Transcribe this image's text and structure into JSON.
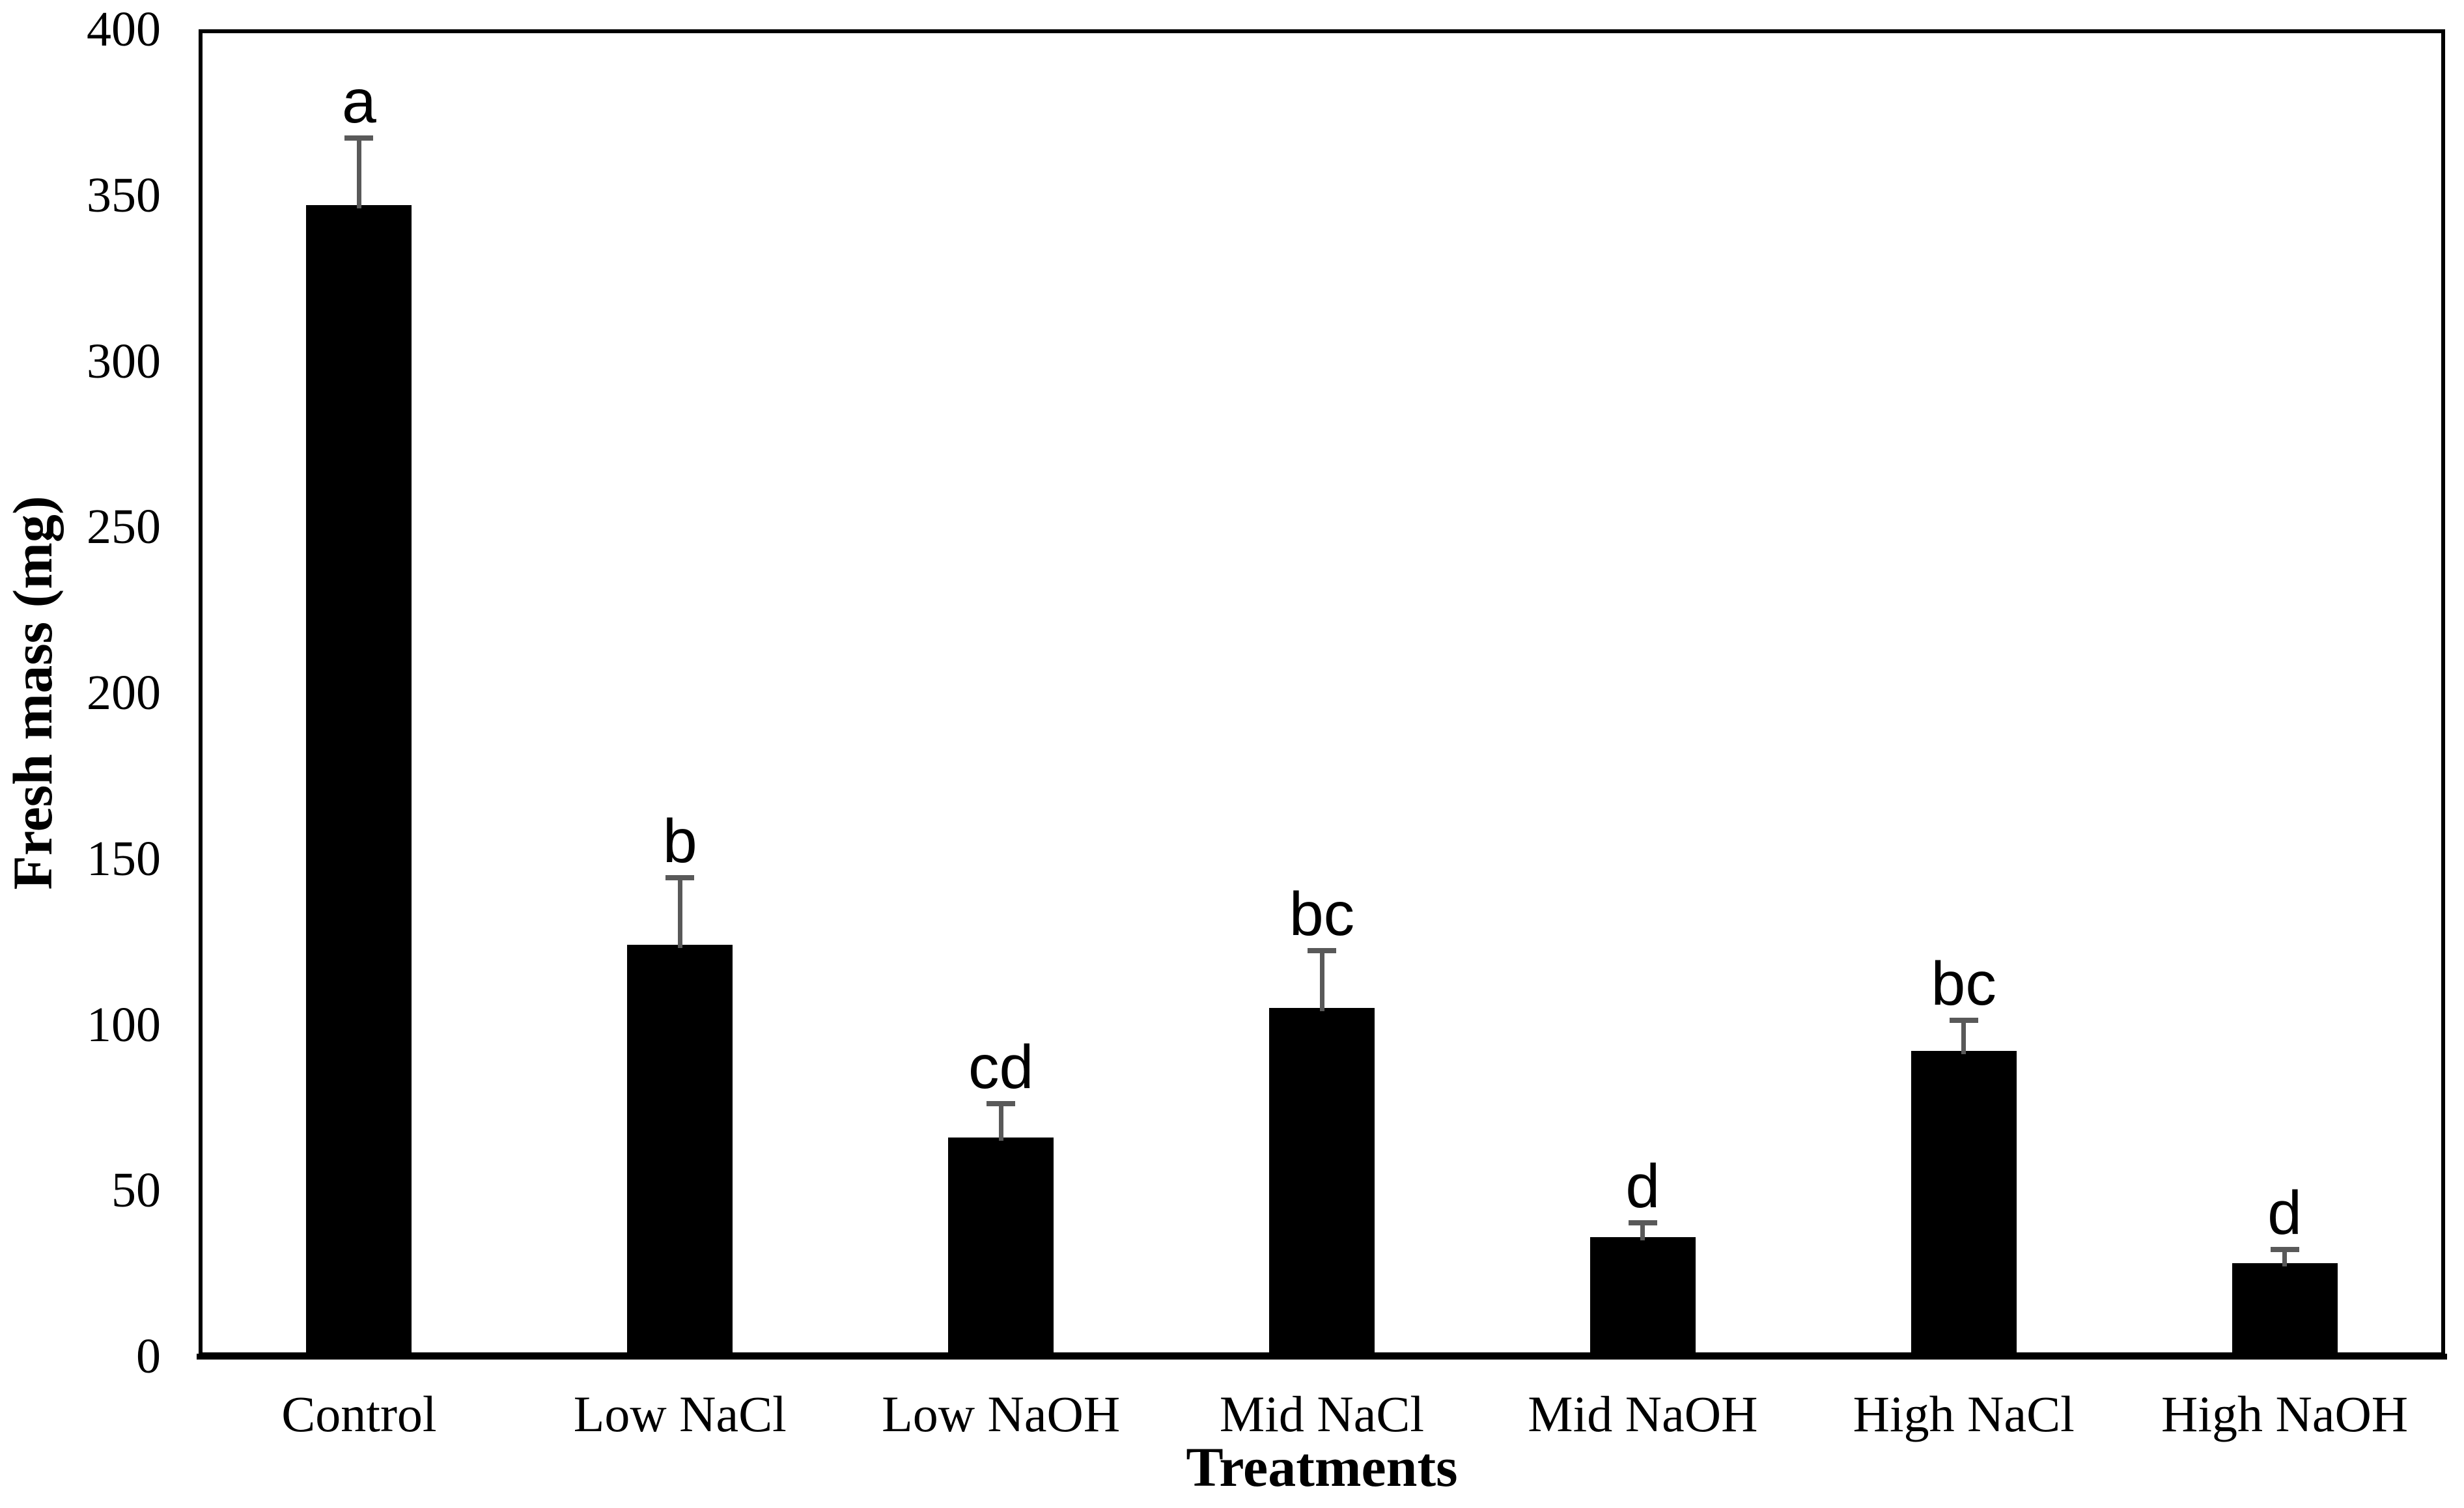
{
  "figure": {
    "background_color": "#ffffff",
    "bar_color": "#000000",
    "error_bar_color": "#595959",
    "axis_color": "#000000"
  },
  "chart_data": {
    "type": "bar",
    "title": "",
    "xlabel": "Treatments",
    "ylabel": "Fresh mass (mg)",
    "categories": [
      "Control",
      "Low NaCl",
      "Low NaOH",
      "Mid NaCl",
      "Mid NaOH",
      "High NaCl",
      "High NaOH"
    ],
    "values": [
      347,
      124,
      66,
      105,
      36,
      92,
      28
    ],
    "error_upper": [
      368,
      145,
      77,
      123,
      41,
      102,
      33
    ],
    "significance_letters": [
      "a",
      "b",
      "cd",
      "bc",
      "d",
      "bc",
      "d"
    ],
    "ylim": [
      0,
      400
    ],
    "yticks": [
      0,
      50,
      100,
      150,
      200,
      250,
      300,
      350,
      400
    ],
    "grid": false,
    "legend": "none",
    "error_bars": "upper only, gray, capped"
  }
}
